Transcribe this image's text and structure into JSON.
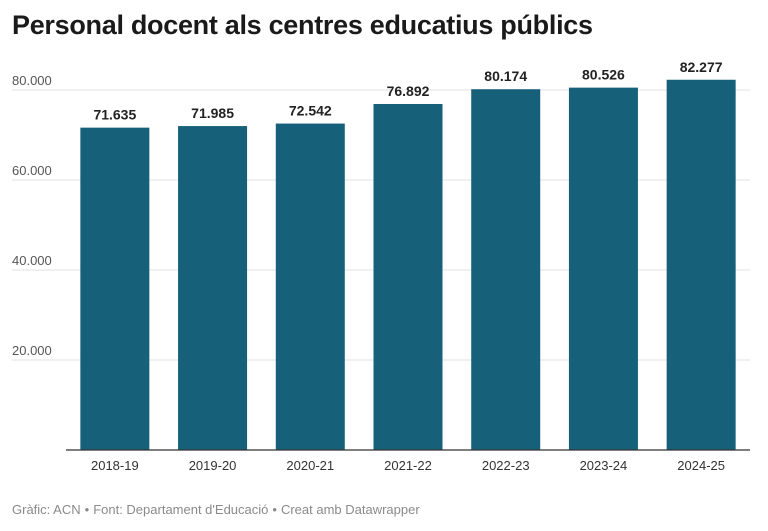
{
  "chart_data": {
    "type": "bar",
    "title": "Personal docent als centres educatius públics",
    "categories": [
      "2018-19",
      "2019-20",
      "2020-21",
      "2021-22",
      "2022-23",
      "2023-24",
      "2024-25"
    ],
    "values": [
      71635,
      71985,
      72542,
      76892,
      80174,
      80526,
      82277
    ],
    "value_labels": [
      "71.635",
      "71.985",
      "72.542",
      "76.892",
      "80.174",
      "80.526",
      "82.277"
    ],
    "ylim": [
      0,
      80000
    ],
    "yticks": [
      20000,
      40000,
      60000,
      80000
    ],
    "ytick_labels": [
      "20.000",
      "40.000",
      "60.000",
      "80.000"
    ],
    "xlabel": "",
    "ylabel": "",
    "grid": true,
    "legend": "none",
    "bar_color": "#17607a"
  },
  "footer": {
    "chart_credit": "Gràfic: ACN",
    "source": "Font: Departament d'Educació",
    "tool": "Creat amb Datawrapper",
    "separator": "•"
  }
}
